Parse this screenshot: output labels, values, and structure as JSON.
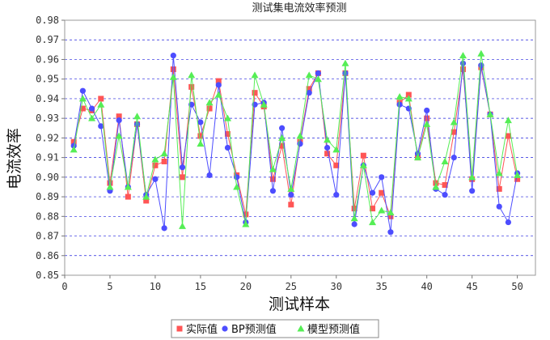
{
  "chart_data": {
    "type": "line",
    "title": "测试集电流效率预测",
    "xlabel": "测试样本",
    "ylabel": "电流效率",
    "xlim": [
      0,
      52
    ],
    "ylim": [
      0.85,
      0.98
    ],
    "xticks": [
      0,
      5,
      10,
      15,
      20,
      25,
      30,
      35,
      40,
      45,
      50
    ],
    "yticks": [
      0.85,
      0.86,
      0.87,
      0.88,
      0.89,
      0.9,
      0.91,
      0.92,
      0.93,
      0.94,
      0.95,
      0.96,
      0.97,
      0.98
    ],
    "xtick_labels": [
      "0",
      "5",
      "10",
      "15",
      "20",
      "25",
      "30",
      "35",
      "40",
      "45",
      "50"
    ],
    "ytick_labels": [
      "0.85",
      "0.86",
      "0.87",
      "0.88",
      "0.89",
      "0.90",
      "0.91",
      "0.92",
      "0.93",
      "0.94",
      "0.95",
      "0.96",
      "0.97",
      "0.98"
    ],
    "grid": "horizontal dashed",
    "legend_position": "bottom",
    "x": [
      1,
      2,
      3,
      4,
      5,
      6,
      7,
      8,
      9,
      10,
      11,
      12,
      13,
      14,
      15,
      16,
      17,
      18,
      19,
      20,
      21,
      22,
      23,
      24,
      25,
      26,
      27,
      28,
      29,
      30,
      31,
      32,
      33,
      34,
      35,
      36,
      37,
      38,
      39,
      40,
      41,
      42,
      43,
      44,
      45,
      46,
      47,
      48,
      49,
      50
    ],
    "series": [
      {
        "name": "实际值",
        "color": "#ff5555",
        "marker": "square",
        "values": [
          0.918,
          0.935,
          0.934,
          0.94,
          0.897,
          0.931,
          0.89,
          0.927,
          0.888,
          0.906,
          0.908,
          0.955,
          0.9,
          0.946,
          0.921,
          0.935,
          0.949,
          0.922,
          0.901,
          0.881,
          0.943,
          0.936,
          0.899,
          0.916,
          0.886,
          0.918,
          0.945,
          0.953,
          0.912,
          0.906,
          0.953,
          0.884,
          0.911,
          0.884,
          0.892,
          0.88,
          0.938,
          0.942,
          0.91,
          0.93,
          0.897,
          0.896,
          0.923,
          0.955,
          0.899,
          0.956,
          0.932,
          0.894,
          0.921,
          0.899
        ]
      },
      {
        "name": "BP预测值",
        "color": "#4d4dff",
        "marker": "circle",
        "values": [
          0.916,
          0.944,
          0.935,
          0.926,
          0.893,
          0.929,
          0.895,
          0.927,
          0.891,
          0.899,
          0.874,
          0.962,
          0.905,
          0.937,
          0.928,
          0.901,
          0.947,
          0.915,
          0.9,
          0.877,
          0.937,
          0.938,
          0.893,
          0.925,
          0.891,
          0.917,
          0.943,
          0.953,
          0.915,
          0.891,
          0.953,
          0.876,
          0.906,
          0.892,
          0.9,
          0.872,
          0.937,
          0.935,
          0.912,
          0.934,
          0.894,
          0.891,
          0.91,
          0.958,
          0.893,
          0.957,
          0.932,
          0.885,
          0.877,
          0.902
        ]
      },
      {
        "name": "模型预测值",
        "color": "#55ee55",
        "marker": "triangle",
        "values": [
          0.914,
          0.94,
          0.93,
          0.937,
          0.895,
          0.921,
          0.895,
          0.931,
          0.89,
          0.909,
          0.912,
          0.951,
          0.875,
          0.952,
          0.917,
          0.938,
          0.942,
          0.93,
          0.895,
          0.876,
          0.952,
          0.937,
          0.904,
          0.92,
          0.894,
          0.921,
          0.952,
          0.95,
          0.919,
          0.914,
          0.958,
          0.879,
          0.906,
          0.877,
          0.883,
          0.882,
          0.941,
          0.94,
          0.91,
          0.927,
          0.895,
          0.908,
          0.928,
          0.962,
          0.9,
          0.963,
          0.932,
          0.902,
          0.929,
          0.901
        ]
      }
    ]
  }
}
